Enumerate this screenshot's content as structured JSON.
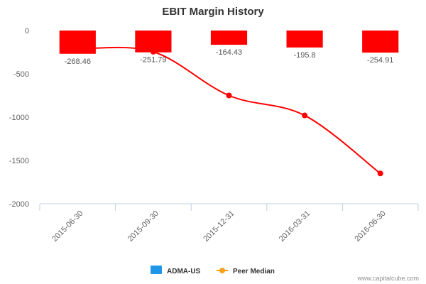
{
  "chart_data": {
    "type": "bar",
    "title": "EBIT Margin History",
    "categories": [
      "2015-06-30",
      "2015-09-30",
      "2015-12-31",
      "2016-03-31",
      "2016-06-30"
    ],
    "series": [
      {
        "name": "ADMA-US",
        "type": "bar",
        "values": [
          -268.46,
          -251.79,
          -164.43,
          -195.8,
          -254.91
        ],
        "data_labels": [
          "-268.46",
          "-251.79",
          "-164.43",
          "-195.8",
          "-254.91"
        ],
        "legend_color": "#2196e8",
        "bar_color": "#ff0000"
      },
      {
        "name": "Peer Median",
        "type": "line",
        "values": [
          -210,
          -245,
          -750,
          -980,
          -1650
        ],
        "color": "#ff0000",
        "legend_color": "#f7a21b"
      }
    ],
    "yticks": [
      "0",
      "-500",
      "-1000",
      "-1500",
      "-2000"
    ],
    "ylim": [
      -2000,
      0
    ],
    "grid": false,
    "legend_position": "bottom-center"
  },
  "credit": "www.capitalcube.com"
}
